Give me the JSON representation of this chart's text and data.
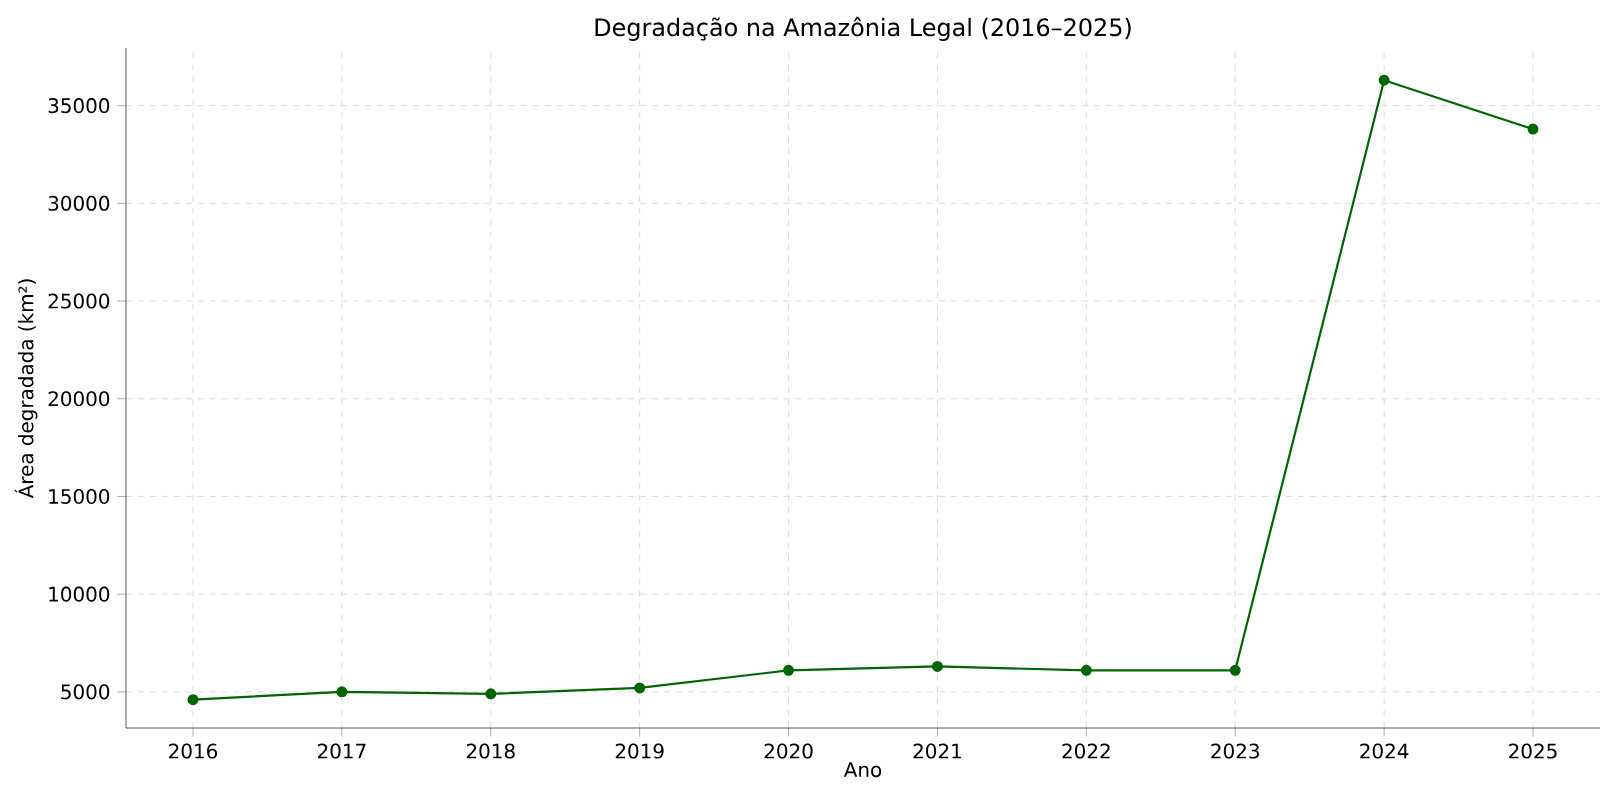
{
  "chart_data": {
    "type": "line",
    "title": "Degradação na Amazônia Legal (2016–2025)",
    "xlabel": "Ano",
    "ylabel": "Área degradada (km²)",
    "x": [
      2016,
      2017,
      2018,
      2019,
      2020,
      2021,
      2022,
      2023,
      2024,
      2025
    ],
    "series": [
      {
        "color": "#006400",
        "values": [
          4600,
          5000,
          4900,
          5200,
          6100,
          6300,
          6100,
          6100,
          36300,
          33800
        ]
      }
    ],
    "xlim": [
      2015.55,
      2025.45
    ],
    "ylim": [
      3150,
      37950
    ],
    "xticks": [
      2016,
      2017,
      2018,
      2019,
      2020,
      2021,
      2022,
      2023,
      2024,
      2025
    ],
    "yticks": [
      5000,
      10000,
      15000,
      20000,
      25000,
      30000,
      35000
    ],
    "grid": true,
    "marker": "circle",
    "line_style": "solid"
  }
}
